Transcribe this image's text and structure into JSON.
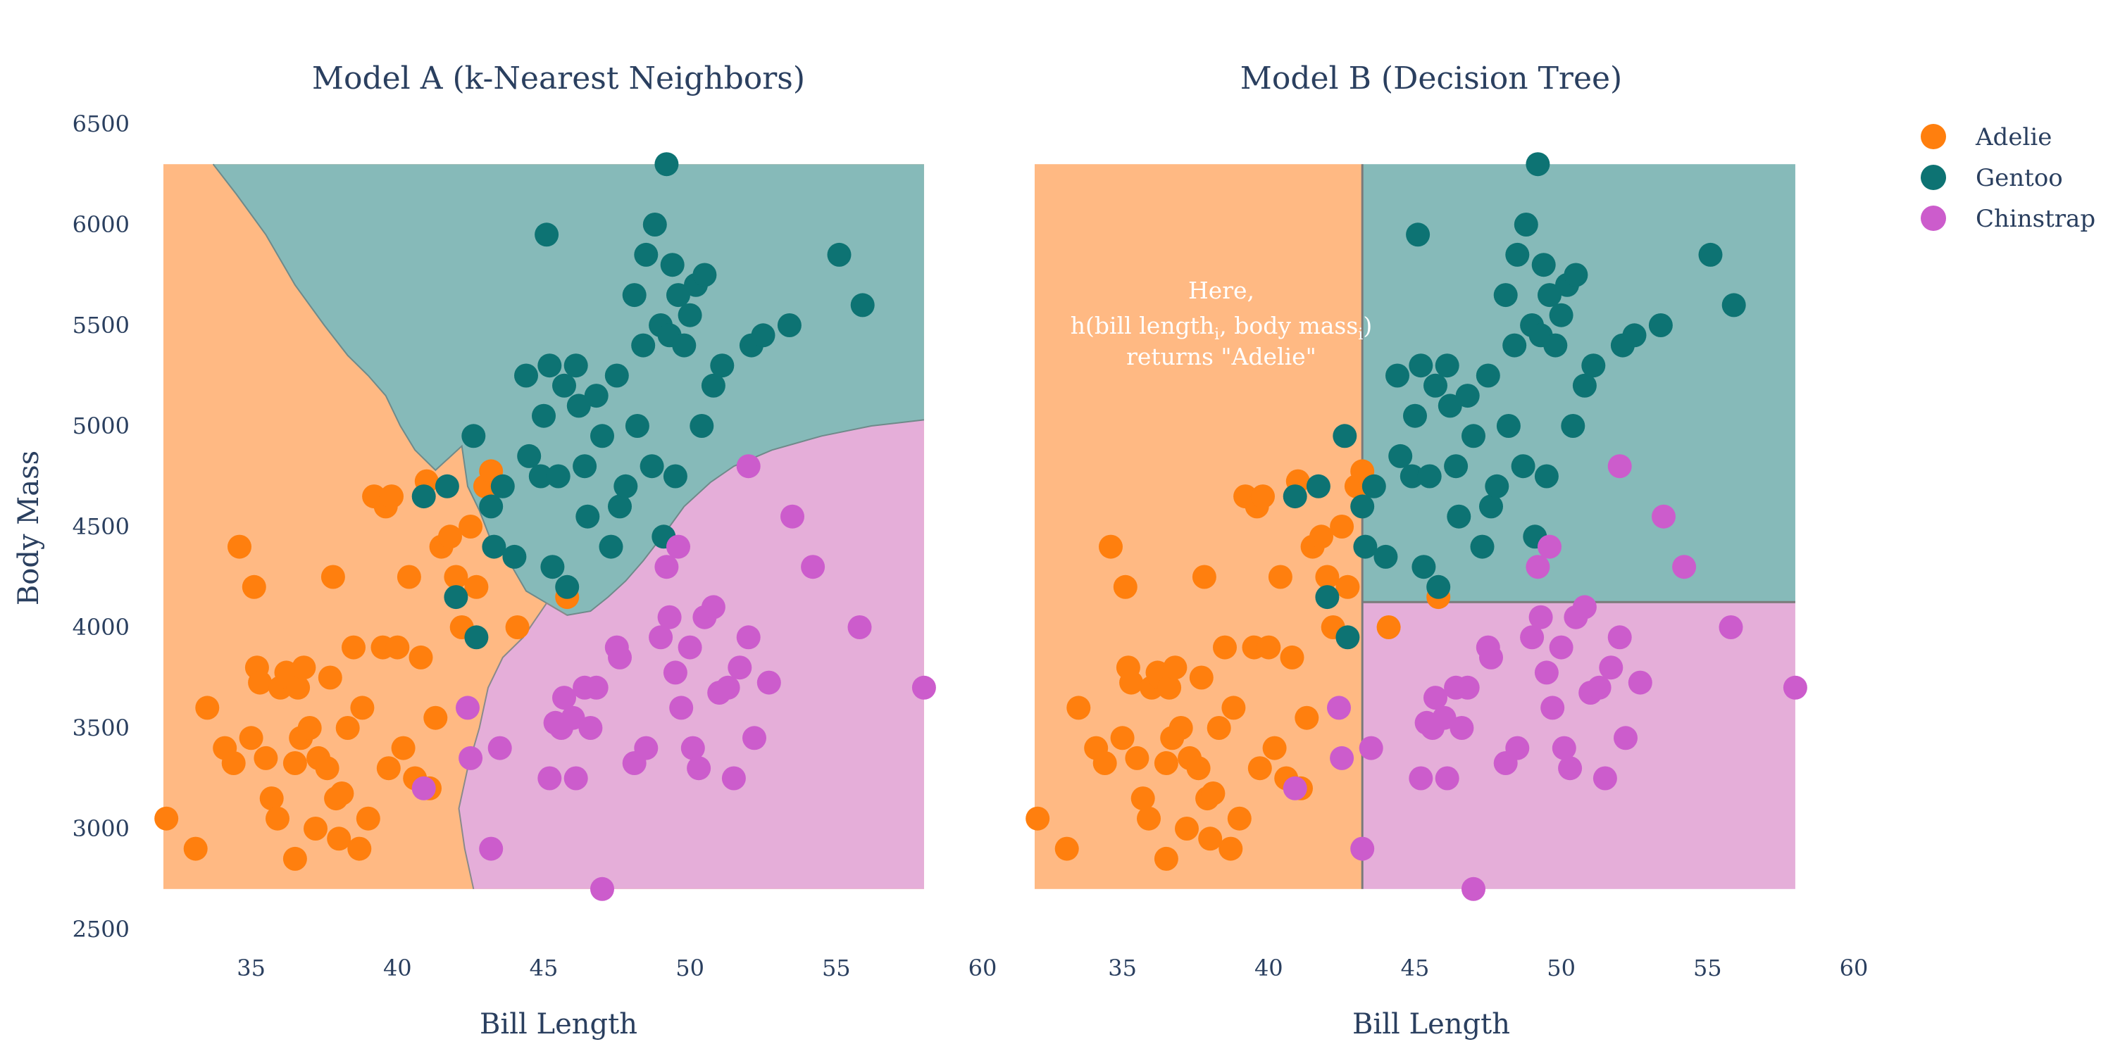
{
  "colors": {
    "Adelie": "#ff7f0e",
    "Gentoo": "#0d7373",
    "Chinstrap": "#cc5ccc",
    "Adelie_region": "#ffb983",
    "Gentoo_region": "#86bab9",
    "Chinstrap_region": "#e5aed9",
    "text": "#2a3f5f"
  },
  "shared_axes": {
    "xlabel": "Bill Length",
    "ylabel": "Body Mass",
    "xlim": [
      32,
      60
    ],
    "ylim": [
      2500,
      6500
    ],
    "xticks": [
      35,
      40,
      45,
      50,
      55,
      60
    ],
    "yticks": [
      2500,
      3000,
      3500,
      4000,
      4500,
      5000,
      5500,
      6000,
      6500
    ],
    "region_xlim": [
      32,
      58
    ],
    "region_ylim": [
      2700,
      6300
    ]
  },
  "legend": {
    "position": "top-right",
    "entries": [
      "Adelie",
      "Gentoo",
      "Chinstrap"
    ]
  },
  "chart_data": [
    {
      "type": "scatter",
      "title": "Model A (k-Nearest Neighbors)",
      "xlabel": "Bill Length",
      "ylabel": "Body Mass",
      "xlim": [
        32,
        60
      ],
      "ylim": [
        2500,
        6500
      ],
      "decision_regions": {
        "Adelie": "west and lower-left region",
        "Gentoo": "upper-right region",
        "Chinstrap": "lower-right region"
      },
      "series": [
        {
          "name": "Adelie",
          "points": [
            [
              32.1,
              3050
            ],
            [
              33.1,
              2900
            ],
            [
              33.5,
              3600
            ],
            [
              34.1,
              3400
            ],
            [
              34.4,
              3325
            ],
            [
              34.6,
              4400
            ],
            [
              35,
              3450
            ],
            [
              35.1,
              4200
            ],
            [
              35.2,
              3800
            ],
            [
              35.3,
              3725
            ],
            [
              35.5,
              3350
            ],
            [
              35.7,
              3150
            ],
            [
              35.9,
              3050
            ],
            [
              36,
              3700
            ],
            [
              36.2,
              3775
            ],
            [
              36.3,
              3750
            ],
            [
              36.5,
              2850
            ],
            [
              36.5,
              3325
            ],
            [
              36.6,
              3700
            ],
            [
              36.7,
              3450
            ],
            [
              36.8,
              3800
            ],
            [
              37,
              3500
            ],
            [
              37.2,
              3000
            ],
            [
              37.3,
              3350
            ],
            [
              37.6,
              3300
            ],
            [
              37.7,
              3750
            ],
            [
              37.8,
              4250
            ],
            [
              37.9,
              3150
            ],
            [
              38,
              2950
            ],
            [
              38.1,
              3175
            ],
            [
              38.3,
              3500
            ],
            [
              38.5,
              3900
            ],
            [
              38.7,
              2900
            ],
            [
              38.8,
              3600
            ],
            [
              39,
              3050
            ],
            [
              39.2,
              4650
            ],
            [
              39.5,
              3900
            ],
            [
              39.6,
              4600
            ],
            [
              39.7,
              3300
            ],
            [
              39.8,
              4650
            ],
            [
              40,
              3900
            ],
            [
              40.2,
              3400
            ],
            [
              40.4,
              4250
            ],
            [
              40.6,
              3250
            ],
            [
              40.8,
              3850
            ],
            [
              41,
              4725
            ],
            [
              41.1,
              3200
            ],
            [
              41.3,
              3550
            ],
            [
              41.5,
              4400
            ],
            [
              41.8,
              4450
            ],
            [
              42,
              4250
            ],
            [
              42.2,
              4000
            ],
            [
              42.5,
              4500
            ],
            [
              42.7,
              4200
            ],
            [
              43,
              4700
            ],
            [
              43.2,
              4775
            ],
            [
              44.1,
              4000
            ],
            [
              45.8,
              4150
            ]
          ]
        },
        {
          "name": "Gentoo",
          "points": [
            [
              40.9,
              4650
            ],
            [
              41.7,
              4700
            ],
            [
              42.0,
              4150
            ],
            [
              42.6,
              4950
            ],
            [
              42.7,
              3950
            ],
            [
              43.2,
              4600
            ],
            [
              43.3,
              4400
            ],
            [
              43.6,
              4700
            ],
            [
              44,
              4350
            ],
            [
              44.4,
              5250
            ],
            [
              44.5,
              4850
            ],
            [
              44.9,
              4750
            ],
            [
              45,
              5050
            ],
            [
              45.1,
              5950
            ],
            [
              45.2,
              5300
            ],
            [
              45.3,
              4300
            ],
            [
              45.5,
              4750
            ],
            [
              45.7,
              5200
            ],
            [
              45.8,
              4200
            ],
            [
              46.1,
              5300
            ],
            [
              46.2,
              5100
            ],
            [
              46.4,
              4800
            ],
            [
              46.5,
              4550
            ],
            [
              46.8,
              5150
            ],
            [
              47,
              4950
            ],
            [
              47.3,
              4400
            ],
            [
              47.5,
              5250
            ],
            [
              47.6,
              4600
            ],
            [
              47.8,
              4700
            ],
            [
              48.1,
              5650
            ],
            [
              48.2,
              5000
            ],
            [
              48.4,
              5400
            ],
            [
              48.5,
              5850
            ],
            [
              48.7,
              4800
            ],
            [
              48.8,
              6000
            ],
            [
              49,
              5500
            ],
            [
              49.1,
              4450
            ],
            [
              49.3,
              5450
            ],
            [
              49.4,
              5800
            ],
            [
              49.5,
              4750
            ],
            [
              49.6,
              5650
            ],
            [
              49.8,
              5400
            ],
            [
              50,
              5550
            ],
            [
              50.2,
              5700
            ],
            [
              50.4,
              5000
            ],
            [
              50.5,
              5750
            ],
            [
              50.8,
              5200
            ],
            [
              51.1,
              5300
            ],
            [
              52.1,
              5400
            ],
            [
              52.5,
              5450
            ],
            [
              53.4,
              5500
            ],
            [
              55.1,
              5850
            ],
            [
              55.9,
              5600
            ],
            [
              49.2,
              6300
            ]
          ]
        },
        {
          "name": "Chinstrap",
          "points": [
            [
              40.9,
              3200
            ],
            [
              42.4,
              3600
            ],
            [
              42.5,
              3350
            ],
            [
              43.2,
              2900
            ],
            [
              43.5,
              3400
            ],
            [
              45.2,
              3250
            ],
            [
              45.4,
              3525
            ],
            [
              45.6,
              3500
            ],
            [
              45.7,
              3650
            ],
            [
              46,
              3550
            ],
            [
              46.1,
              3250
            ],
            [
              46.4,
              3700
            ],
            [
              46.6,
              3500
            ],
            [
              46.8,
              3700
            ],
            [
              47,
              2700
            ],
            [
              47.5,
              3900
            ],
            [
              47.6,
              3850
            ],
            [
              48.1,
              3325
            ],
            [
              48.5,
              3400
            ],
            [
              49,
              3950
            ],
            [
              49.2,
              4300
            ],
            [
              49.3,
              4050
            ],
            [
              49.5,
              3775
            ],
            [
              49.7,
              3600
            ],
            [
              50,
              3900
            ],
            [
              50.1,
              3400
            ],
            [
              50.3,
              3300
            ],
            [
              50.5,
              4050
            ],
            [
              50.8,
              4100
            ],
            [
              51,
              3675
            ],
            [
              51.3,
              3700
            ],
            [
              51.5,
              3250
            ],
            [
              51.7,
              3800
            ],
            [
              52,
              3950
            ],
            [
              52.2,
              3450
            ],
            [
              52.7,
              3725
            ],
            [
              53.5,
              4550
            ],
            [
              54.2,
              4300
            ],
            [
              55.8,
              4000
            ],
            [
              58,
              3700
            ],
            [
              52,
              4800
            ],
            [
              49.6,
              4400
            ]
          ]
        }
      ]
    },
    {
      "type": "scatter",
      "title": "Model B (Decision Tree)",
      "xlabel": "Bill Length",
      "ylabel": "",
      "xlim": [
        32,
        60
      ],
      "ylim": [
        2500,
        6500
      ],
      "decision_regions": {
        "Adelie": "Bill Length < 43.2",
        "Gentoo": "Bill Length >= 43.2 and Body Mass >= 4125",
        "Chinstrap": "Bill Length >= 43.2 and Body Mass < 4125"
      },
      "split_x": 43.2,
      "split_y": 4125,
      "annotation": {
        "line1": "Here,",
        "line2_a": "h(bill length",
        "line2_sub1": "i",
        "line2_b": ", body mass",
        "line2_sub2": "i",
        "line2_c": ")",
        "line3": "returns \"Adelie\""
      },
      "series_same_as_model_a": true
    }
  ]
}
